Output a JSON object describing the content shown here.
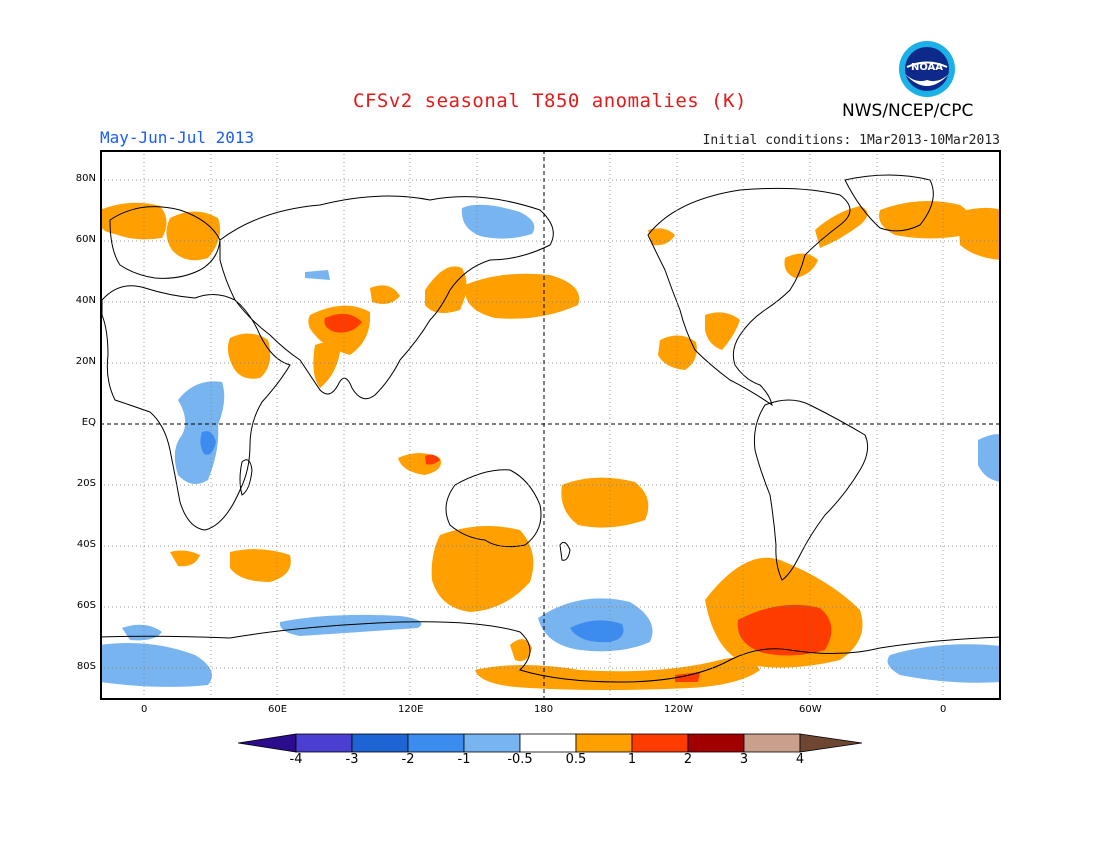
{
  "header": {
    "title": "CFSv2 seasonal T850 anomalies (K)",
    "season": "May-Jun-Jul 2013",
    "initial_conditions": "Initial conditions: 1Mar2013-10Mar2013",
    "org": "NWS/NCEP/CPC",
    "logo_text": "NOAA"
  },
  "map": {
    "lat_labels": [
      "80N",
      "60N",
      "40N",
      "20N",
      "EQ",
      "20S",
      "40S",
      "60S",
      "80S"
    ],
    "lon_labels": [
      "0",
      "60E",
      "120E",
      "180",
      "120W",
      "60W",
      "0"
    ]
  },
  "colorbar": {
    "labels": [
      "-4",
      "-3",
      "-2",
      "-1",
      "-0.5",
      "0.5",
      "1",
      "2",
      "3",
      "4"
    ],
    "colors": [
      "#2a0c8c",
      "#4a3fd0",
      "#1e64d2",
      "#3c8cf0",
      "#78b4f0",
      "#ffffff",
      "#ffa000",
      "#ff3c00",
      "#a00000",
      "#c8a08c",
      "#6e4632"
    ]
  },
  "colors": {
    "warm_light": "#ffa000",
    "warm_strong": "#ff3c00",
    "cool_light": "#78b4f0",
    "cool_strong": "#3c8cf0",
    "title_red": "#e41a1a",
    "season_blue": "#1a5cff"
  }
}
